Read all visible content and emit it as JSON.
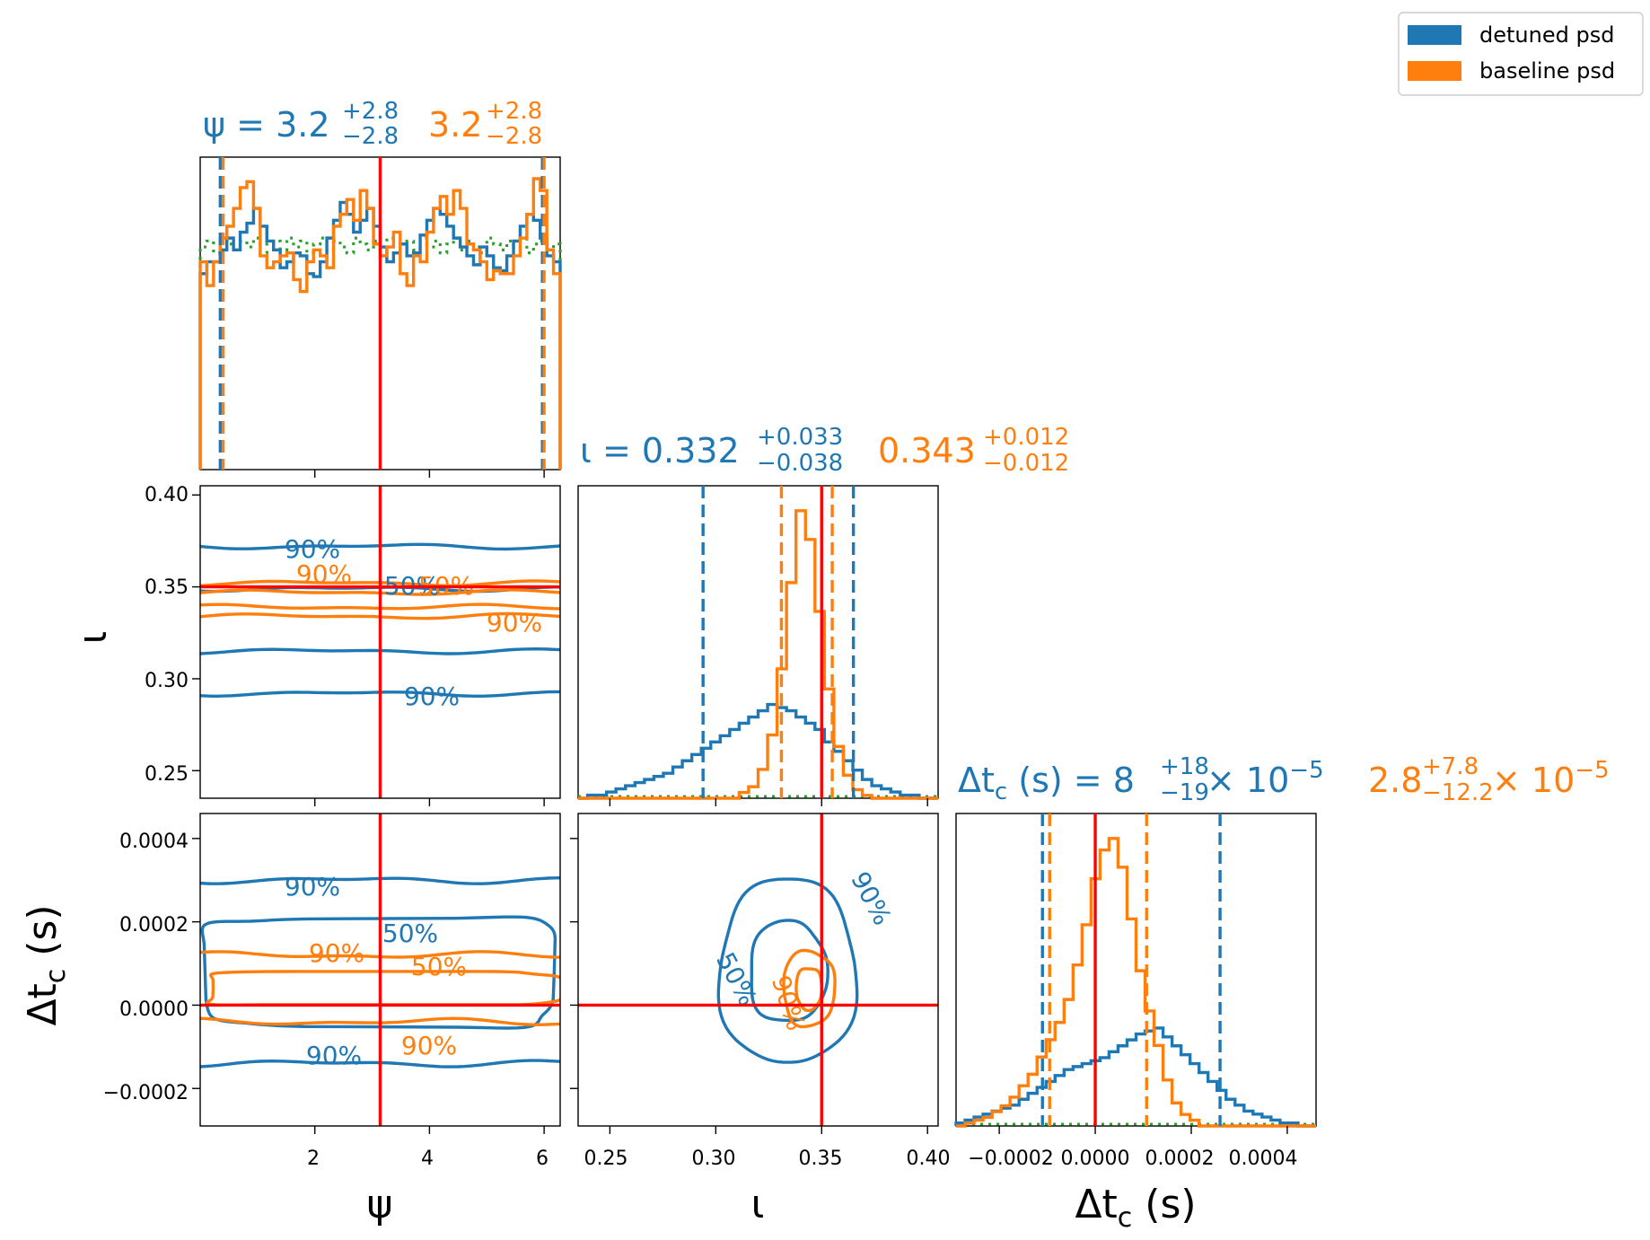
{
  "colors": {
    "detuned": "#1f77b4",
    "baseline": "#ff7f0e",
    "prior": "#2ca02c",
    "truth": "#ff0000"
  },
  "legend": {
    "placement": "top-right",
    "entries": [
      "detuned psd",
      "baseline psd"
    ]
  },
  "axes": {
    "psi": {
      "label": "ψ",
      "ticks": [
        "2",
        "4",
        "6"
      ]
    },
    "iota": {
      "label": "ι",
      "ticks": [
        "0.25",
        "0.30",
        "0.35",
        "0.40"
      ],
      "yticks": [
        "0.25",
        "0.30",
        "0.35",
        "0.40"
      ]
    },
    "dtc": {
      "label_base": "Δt",
      "label_sub": "c",
      "label_unit": " (s)",
      "ticks": [
        "−0.0002",
        "0.0000",
        "0.0002",
        "0.0004"
      ],
      "yticks": [
        "−0.0002",
        "0.0000",
        "0.0002",
        "0.0004"
      ]
    }
  },
  "titles": {
    "psi": {
      "prefix": "ψ = ",
      "detuned": {
        "median": "3.2",
        "plus": "+2.8",
        "minus": "−2.8"
      },
      "baseline": {
        "median": "3.2",
        "plus": "+2.8",
        "minus": "−2.8"
      }
    },
    "iota": {
      "prefix": "ι = ",
      "detuned": {
        "median": "0.332",
        "plus": "+0.033",
        "minus": "−0.038"
      },
      "baseline": {
        "median": "0.343",
        "plus": "+0.012",
        "minus": "−0.012"
      }
    },
    "dtc": {
      "prefix_base": "Δt",
      "prefix_sub": "c",
      "prefix_rest": " (s) = ",
      "detuned": {
        "median": "8",
        "plus": "+18",
        "minus": "−19",
        "scale": " × 10",
        "exp": "−5"
      },
      "baseline": {
        "median": "2.8",
        "plus": "+7.8",
        "minus": "−12.2",
        "scale": " × 10",
        "exp": "−5"
      }
    }
  },
  "contour_labels": {
    "psi_iota": [
      {
        "series": "detuned",
        "text": "90%"
      },
      {
        "series": "baseline",
        "text": "90%"
      },
      {
        "series": "detuned",
        "text": "50%"
      },
      {
        "series": "baseline",
        "text": "50%"
      },
      {
        "series": "baseline",
        "text": "90%"
      },
      {
        "series": "detuned",
        "text": "90%"
      }
    ],
    "psi_dtc": [
      {
        "series": "detuned",
        "text": "90%"
      },
      {
        "series": "detuned",
        "text": "50%"
      },
      {
        "series": "baseline",
        "text": "90%"
      },
      {
        "series": "baseline",
        "text": "50%"
      },
      {
        "series": "baseline",
        "text": "90%"
      },
      {
        "series": "detuned",
        "text": "90%"
      }
    ],
    "iota_dtc": [
      {
        "series": "detuned",
        "text": "90%"
      },
      {
        "series": "detuned",
        "text": "50%"
      },
      {
        "series": "baseline",
        "text": "90%"
      }
    ]
  },
  "chart_data": {
    "type": "corner",
    "parameters": [
      "ψ",
      "ι",
      "Δt_c (s)"
    ],
    "truth": {
      "psi": 3.14,
      "iota": 0.35,
      "dtc": 0.0
    },
    "ranges": {
      "psi": [
        0.0,
        6.28
      ],
      "iota": [
        0.235,
        0.405
      ],
      "dtc": [
        -0.00029,
        0.00046
      ]
    },
    "credible_interval_90": {
      "psi": {
        "detuned": [
          0.35,
          5.97
        ],
        "baseline": [
          0.4,
          6.0
        ]
      },
      "iota": {
        "detuned": [
          0.294,
          0.365
        ],
        "baseline": [
          0.331,
          0.355
        ]
      },
      "dtc": {
        "detuned": [
          -0.00011,
          0.00026
        ],
        "baseline": [
          -9.5e-05,
          0.000107
        ]
      }
    },
    "histograms": {
      "psi": {
        "detuned": [
          0.66,
          0.7,
          0.7,
          0.74,
          0.78,
          0.74,
          0.8,
          0.83,
          0.88,
          0.82,
          0.77,
          0.74,
          0.68,
          0.7,
          0.73,
          0.72,
          0.66,
          0.65,
          0.7,
          0.78,
          0.84,
          0.9,
          0.86,
          0.8,
          0.84,
          0.88,
          0.82,
          0.75,
          0.7,
          0.73,
          0.76,
          0.72,
          0.73,
          0.79,
          0.84,
          0.88,
          0.86,
          0.82,
          0.78,
          0.75,
          0.72,
          0.69,
          0.75,
          0.72,
          0.68,
          0.67,
          0.72,
          0.77,
          0.82,
          0.86,
          0.84,
          0.78,
          0.72,
          0.7
        ],
        "baseline": [
          0.7,
          0.62,
          0.7,
          0.78,
          0.82,
          0.88,
          0.95,
          0.97,
          0.88,
          0.72,
          0.68,
          0.7,
          0.72,
          0.73,
          0.64,
          0.6,
          0.7,
          0.74,
          0.72,
          0.68,
          0.82,
          0.86,
          0.91,
          0.84,
          0.94,
          0.88,
          0.76,
          0.72,
          0.75,
          0.8,
          0.66,
          0.62,
          0.72,
          0.7,
          0.8,
          0.88,
          0.92,
          0.86,
          0.94,
          0.88,
          0.76,
          0.74,
          0.7,
          0.64,
          0.67,
          0.66,
          0.66,
          0.72,
          0.78,
          0.86,
          0.98,
          0.94,
          0.74,
          0.66
        ],
        "prior": [
          0.75,
          0.77,
          0.73,
          0.78,
          0.76,
          0.74,
          0.77,
          0.75,
          0.78,
          0.73,
          0.76,
          0.77,
          0.74,
          0.78,
          0.75,
          0.77,
          0.73,
          0.76,
          0.78,
          0.74,
          0.77,
          0.75,
          0.73,
          0.78,
          0.76,
          0.74,
          0.77,
          0.75,
          0.78,
          0.73,
          0.76,
          0.77,
          0.74,
          0.78,
          0.75,
          0.77,
          0.73,
          0.76,
          0.78,
          0.74,
          0.77,
          0.75,
          0.73,
          0.78,
          0.76,
          0.74,
          0.77,
          0.75,
          0.78,
          0.73,
          0.76,
          0.77,
          0.74,
          0.76
        ]
      },
      "iota": {
        "detuned": [
          0.0,
          0.01,
          0.01,
          0.02,
          0.03,
          0.04,
          0.05,
          0.06,
          0.07,
          0.08,
          0.1,
          0.12,
          0.14,
          0.16,
          0.18,
          0.2,
          0.22,
          0.24,
          0.26,
          0.28,
          0.3,
          0.29,
          0.28,
          0.26,
          0.24,
          0.22,
          0.18,
          0.15,
          0.12,
          0.09,
          0.06,
          0.04,
          0.03,
          0.02,
          0.01,
          0.01,
          0.0,
          0.0
        ],
        "baseline": [
          0.0,
          0.0,
          0.0,
          0.0,
          0.0,
          0.0,
          0.0,
          0.0,
          0.0,
          0.0,
          0.0,
          0.0,
          0.0,
          0.0,
          0.0,
          0.0,
          0.0,
          0.02,
          0.04,
          0.1,
          0.22,
          0.45,
          0.75,
          1.0,
          0.9,
          0.65,
          0.38,
          0.18,
          0.08,
          0.03,
          0.01,
          0.0,
          0.0,
          0.0,
          0.0,
          0.0,
          0.0,
          0.0
        ]
      },
      "dtc": {
        "detuned": [
          0.01,
          0.02,
          0.03,
          0.04,
          0.05,
          0.06,
          0.07,
          0.09,
          0.11,
          0.13,
          0.15,
          0.17,
          0.19,
          0.2,
          0.21,
          0.22,
          0.23,
          0.25,
          0.27,
          0.29,
          0.31,
          0.32,
          0.33,
          0.3,
          0.27,
          0.24,
          0.21,
          0.18,
          0.15,
          0.12,
          0.09,
          0.07,
          0.05,
          0.04,
          0.03,
          0.02,
          0.01,
          0.01,
          0.0,
          0.0
        ],
        "baseline": [
          0.0,
          0.01,
          0.02,
          0.03,
          0.05,
          0.07,
          0.1,
          0.14,
          0.18,
          0.24,
          0.3,
          0.36,
          0.44,
          0.56,
          0.7,
          0.86,
          0.96,
          1.0,
          0.9,
          0.72,
          0.54,
          0.4,
          0.28,
          0.16,
          0.08,
          0.04,
          0.02,
          0.0,
          0.0,
          0.0,
          0.0,
          0.0,
          0.0,
          0.0,
          0.0,
          0.0,
          0.0,
          0.0,
          0.0,
          0.0
        ]
      }
    },
    "contours_2d": {
      "psi_iota": {
        "detuned": {
          "center": [
            3.14,
            0.332
          ],
          "half_width_90": 0.04,
          "half_width_50": 0.017
        },
        "baseline": {
          "center": [
            3.14,
            0.343
          ],
          "half_width_90": 0.009,
          "half_width_50": 0.004
        }
      },
      "psi_dtc": {
        "detuned": {
          "center": [
            3.14,
            8e-05
          ],
          "half_width_90": 0.00022,
          "half_width_50": 0.00013
        },
        "baseline": {
          "center": [
            3.14,
            4e-05
          ],
          "half_width_90": 8e-05,
          "half_width_50": 4e-05
        }
      },
      "iota_dtc": {
        "detuned": {
          "center": [
            0.334,
            8e-05
          ],
          "half_width_90": [
            0.032,
            0.00022
          ],
          "half_width_50": [
            0.018,
            0.00012
          ]
        },
        "baseline": {
          "center": [
            0.344,
            4e-05
          ],
          "half_width_90": [
            0.012,
            9e-05
          ],
          "half_width_50": [
            0.006,
            5e-05
          ]
        }
      }
    }
  }
}
